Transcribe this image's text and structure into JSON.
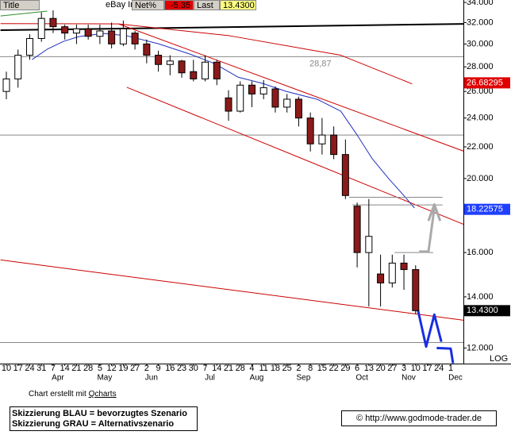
{
  "header": {
    "title": "Title",
    "symbol": "eBay Inc.",
    "net_label": "Net%",
    "net_value": "-5.35",
    "last_label": "Last",
    "last_value": "13.4300"
  },
  "chart_data": {
    "type": "candlestick",
    "log": true,
    "categories": [
      "10",
      "17",
      "24",
      "31",
      "7",
      "14",
      "21",
      "28",
      "5",
      "12",
      "19",
      "27",
      "2",
      "9",
      "16",
      "23",
      "30",
      "7",
      "14",
      "21",
      "28",
      "4",
      "11",
      "18",
      "25",
      "2",
      "8",
      "15",
      "22",
      "29",
      "6",
      "13",
      "20",
      "27",
      "3",
      "10",
      "17",
      "24",
      "1"
    ],
    "months": [
      null,
      null,
      null,
      null,
      "Apr",
      null,
      null,
      null,
      "May",
      null,
      null,
      null,
      "Jun",
      null,
      null,
      null,
      null,
      "Jul",
      null,
      null,
      null,
      "Aug",
      null,
      null,
      null,
      "Sep",
      null,
      null,
      null,
      null,
      "Oct",
      null,
      null,
      null,
      "Nov",
      null,
      null,
      null,
      "Dec"
    ],
    "ylim": [
      11.45,
      34.25
    ],
    "yticks": [
      {
        "value": 34,
        "label": "34.000"
      },
      {
        "value": 32,
        "label": "32.000"
      },
      {
        "value": 30,
        "label": "30.000"
      },
      {
        "value": 28,
        "label": "28.000"
      },
      {
        "value": 26,
        "label": "26.000"
      },
      {
        "value": 24,
        "label": "24.000"
      },
      {
        "value": 22,
        "label": "22.000"
      },
      {
        "value": 20,
        "label": "20.000"
      },
      {
        "value": 16,
        "label": "16.000"
      },
      {
        "value": 14,
        "label": "14.000"
      },
      {
        "value": 12,
        "label": "12.000"
      }
    ],
    "scale_label": "LOG",
    "series": [
      {
        "up_color": "#ffffff",
        "down_color": "#8b1a1a",
        "open": [
          26.0,
          27.0,
          29.0,
          30.5,
          32.4,
          31.6,
          31.0,
          31.4,
          30.7,
          31.2,
          30.0,
          31.0,
          30.0,
          29.0,
          28.2,
          28.5,
          27.6,
          27.0,
          28.4,
          25.5,
          24.5,
          26.5,
          25.8,
          26.2,
          24.8,
          25.4,
          24.0,
          22.2,
          22.8,
          21.5,
          18.4,
          16.0,
          15.0,
          14.6,
          15.5,
          15.2,
          null,
          null,
          null
        ],
        "high": [
          27.6,
          29.5,
          30.9,
          33.0,
          33.2,
          31.8,
          31.8,
          31.8,
          31.8,
          32.0,
          32.2,
          31.2,
          30.4,
          29.4,
          29.0,
          28.6,
          28.6,
          29.0,
          28.6,
          26.1,
          26.8,
          26.8,
          26.9,
          26.4,
          25.8,
          25.6,
          24.4,
          24.0,
          23.4,
          22.5,
          18.6,
          18.8,
          15.9,
          15.9,
          15.9,
          15.4,
          null,
          null,
          null
        ],
        "low": [
          25.4,
          26.3,
          28.6,
          30.2,
          31.0,
          30.4,
          30.0,
          30.4,
          30.0,
          29.6,
          29.8,
          29.5,
          28.3,
          27.6,
          27.3,
          27.1,
          26.8,
          26.8,
          26.5,
          23.8,
          24.4,
          24.8,
          25.4,
          24.4,
          24.4,
          23.4,
          21.7,
          21.5,
          21.2,
          18.8,
          15.3,
          13.6,
          13.6,
          14.4,
          14.3,
          13.3,
          null,
          null,
          null
        ],
        "close": [
          27.0,
          29.0,
          30.5,
          32.4,
          31.6,
          31.0,
          31.4,
          30.7,
          31.2,
          30.0,
          31.4,
          30.0,
          29.0,
          28.2,
          28.5,
          27.5,
          27.0,
          28.4,
          27.0,
          24.5,
          26.5,
          25.8,
          26.3,
          24.8,
          25.4,
          24.0,
          22.2,
          22.8,
          21.5,
          19.0,
          16.0,
          16.8,
          14.6,
          15.5,
          15.2,
          13.43,
          null,
          null,
          null
        ]
      }
    ],
    "levels": [
      {
        "value": 28.87,
        "color": "#888888"
      },
      {
        "value": 22.8,
        "color": "#888888"
      },
      {
        "value": 12.2,
        "color": "#888888"
      }
    ],
    "annotation": "28,87",
    "overlays": [
      {
        "color": "#000000",
        "width": 2,
        "x": [
          -0.5,
          39.1
        ],
        "values": [
          31.27,
          31.87
        ]
      },
      {
        "color": "#2e8b2e",
        "width": 1,
        "x": [
          -0.5,
          3.5
        ],
        "values": [
          32.64,
          33.12
        ]
      },
      {
        "color": "#cc0000",
        "width": 1,
        "x": [
          -0.5,
          9.6,
          19.1,
          28.6,
          34.7
        ],
        "values": [
          31.9,
          31.87,
          30.75,
          29.0,
          26.6
        ]
      },
      {
        "color": "#cc0000",
        "width": 1,
        "x": [
          9.6,
          39.1
        ],
        "values": [
          31.87,
          21.72
        ]
      },
      {
        "color": "#cc0000",
        "width": 1,
        "x": [
          10.3,
          39.1
        ],
        "values": [
          26.33,
          17.42
        ]
      },
      {
        "color": "#cc0000",
        "width": 1,
        "x": [
          -0.5,
          39.1
        ],
        "values": [
          15.65,
          13.05
        ]
      },
      {
        "color": "#2030c0",
        "width": 1,
        "x": [
          2.2,
          3.5,
          4.9,
          6.2,
          8.3,
          10.3,
          13.0,
          15.7,
          17.8,
          19.8,
          21.9,
          23.9,
          26.6,
          28.6,
          30.0,
          31.3,
          32.7,
          34.1,
          34.9
        ],
        "values": [
          28.62,
          29.53,
          30.24,
          30.67,
          30.97,
          30.75,
          30.02,
          29.1,
          28.28,
          27.15,
          26.64,
          26.01,
          25.39,
          24.5,
          22.8,
          21.22,
          19.99,
          18.92,
          18.3
        ]
      },
      {
        "color": "#888888",
        "width": 1,
        "x": [
          29.3,
          37.3
        ],
        "values": [
          18.9,
          18.9
        ]
      },
      {
        "color": "#888888",
        "width": 1,
        "x": [
          29.6,
          37.3
        ],
        "values": [
          18.47,
          18.47
        ]
      },
      {
        "color": "#888888",
        "width": 1,
        "x": [
          33.2,
          36.5
        ],
        "values": [
          16.0,
          16.0
        ]
      },
      {
        "color": "#aaaaaa",
        "width": 3,
        "x": [
          35.3,
          36.1,
          36.6
        ],
        "values": [
          16.05,
          16.05,
          18.3
        ]
      },
      {
        "color": "#aaaaaa",
        "width": 3,
        "x": [
          36.1,
          36.6,
          37.1
        ],
        "values": [
          17.6,
          18.5,
          17.6
        ]
      },
      {
        "color": "#1a2ee0",
        "width": 3,
        "x": [
          35.2,
          35.9,
          36.6,
          37.2
        ],
        "values": [
          13.45,
          12.05,
          13.27,
          12.23
        ]
      },
      {
        "color": "#1a2ee0",
        "width": 3,
        "x": [
          36.8,
          38.0,
          38.2
        ],
        "values": [
          12.0,
          11.98,
          11.46
        ]
      }
    ],
    "price_labels": [
      {
        "value": 26.68295,
        "color": "#e00000"
      },
      {
        "value": 18.22575,
        "color": "#2040ff"
      },
      {
        "value": 13.43,
        "label": "13.4300",
        "color": "#000000"
      }
    ]
  },
  "footer": {
    "credit_prefix": "Chart erstellt mit",
    "credit_link": "Qcharts",
    "legend": [
      "Skizzierung BLAU = bevorzugtes Szenario",
      "Skizzierung GRAU = Alternativszenario"
    ],
    "copyright": "© http://www.godmode-trader.de"
  }
}
